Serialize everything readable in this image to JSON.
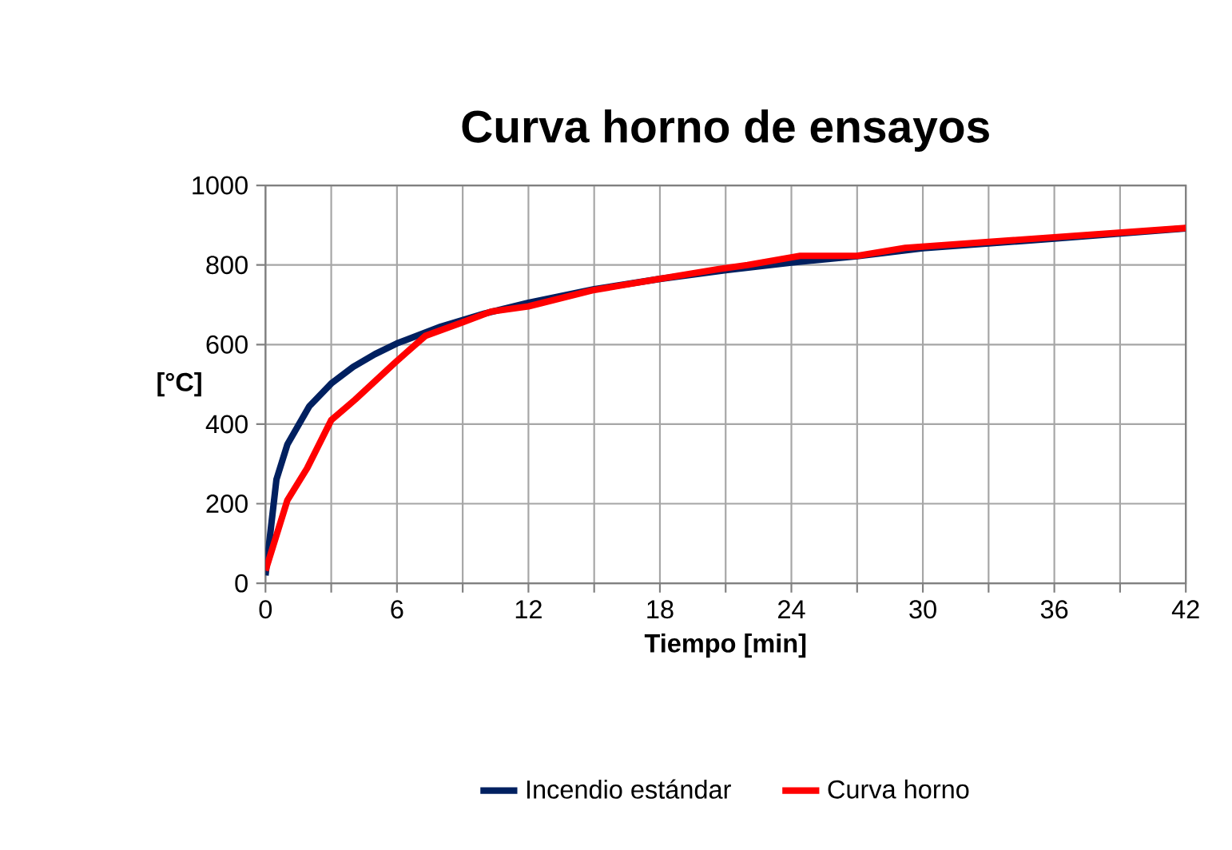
{
  "chart_data": {
    "type": "line",
    "title": "Curva horno de ensayos",
    "xlabel": "Tiempo [min]",
    "ylabel": "[°C]",
    "xlim": [
      0,
      42
    ],
    "ylim": [
      0,
      1000
    ],
    "xticks": [
      0,
      {
        "value": 3,
        "label": null
      },
      6,
      {
        "value": 9,
        "label": null
      },
      12,
      {
        "value": 15,
        "label": null
      },
      18,
      {
        "value": 21,
        "label": null
      },
      24,
      {
        "value": 27,
        "label": null
      },
      30,
      {
        "value": 33,
        "label": null
      },
      36,
      {
        "value": 39,
        "label": null
      },
      42
    ],
    "yticks": [
      0,
      200,
      400,
      600,
      800,
      1000
    ],
    "grid": true,
    "legend": "bottom",
    "marker": "none",
    "line_style": "solid",
    "series": [
      {
        "name": "Incendio estándar",
        "color": "#002060",
        "x": [
          0,
          0.5,
          1,
          2,
          3,
          4,
          5,
          6,
          8,
          10,
          12,
          15,
          18,
          21,
          24,
          27,
          30,
          36,
          42
        ],
        "values": [
          20,
          261,
          349,
          445,
          502,
          544,
          576,
          603,
          645,
          678,
          705,
          739,
          765,
          787,
          806,
          822,
          842,
          866,
          892
        ]
      },
      {
        "name": "Curva horno",
        "color": "#ff0000",
        "x": [
          0,
          1,
          1.9,
          3,
          4.1,
          5.9,
          7.3,
          9,
          10.3,
          12,
          14.9,
          18,
          20.7,
          22,
          24.4,
          27,
          29.2,
          42
        ],
        "values": [
          32,
          209,
          289,
          410,
          462,
          554,
          622,
          656,
          683,
          696,
          736,
          765,
          790,
          800,
          823,
          823,
          843,
          893
        ]
      }
    ]
  }
}
